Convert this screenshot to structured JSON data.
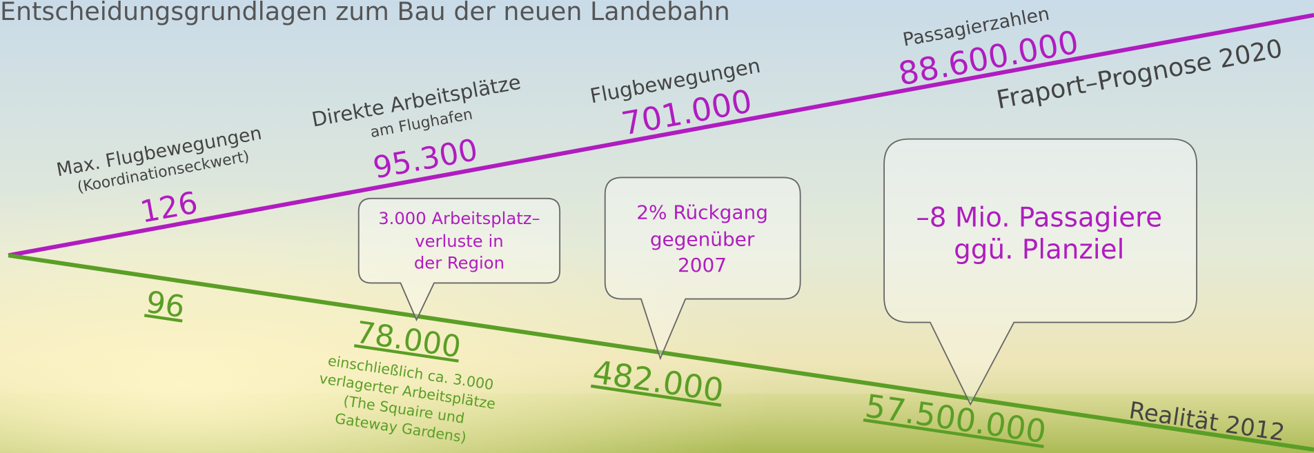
{
  "title": "Entscheidungsgrundlagen zum Bau der neuen Landebahn",
  "forecast_label": "Fraport–Prognose 2020",
  "reality_label": "Realität 2012",
  "items": [
    {
      "label": "Max. Flugbewegungen",
      "sublabel": "(Koordinationseckwert)",
      "forecast": "126",
      "actual": "96"
    },
    {
      "label": "Direkte Arbeitsplätze",
      "sublabel": "am Flughafen",
      "forecast": "95.300",
      "actual": "78.000",
      "actual_note": [
        "einschließlich ca. 3.000",
        "verlagerter Arbeitsplätze",
        "(The Squaire und",
        "Gateway Gardens)"
      ],
      "callout": [
        "3.000 Arbeitsplatz–",
        "verluste in",
        "der Region"
      ]
    },
    {
      "label": "Flugbewegungen",
      "forecast": "701.000",
      "actual": "482.000",
      "callout": [
        "2% Rückgang",
        "gegenüber",
        "2007"
      ]
    },
    {
      "label": "Passagierzahlen",
      "forecast": "88.600.000",
      "actual": "57.500.000",
      "callout": [
        "–8 Mio. Passagiere",
        "ggü. Planziel"
      ]
    }
  ]
}
